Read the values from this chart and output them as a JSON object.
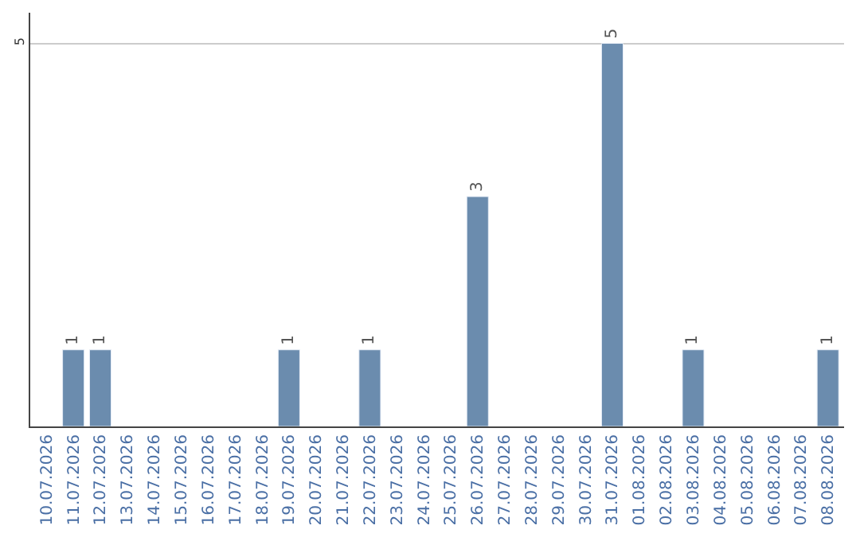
{
  "chart_data": {
    "type": "bar",
    "categories": [
      "10.07.2026",
      "11.07.2026",
      "12.07.2026",
      "13.07.2026",
      "14.07.2026",
      "15.07.2026",
      "16.07.2026",
      "17.07.2026",
      "18.07.2026",
      "19.07.2026",
      "20.07.2026",
      "21.07.2026",
      "22.07.2026",
      "23.07.2026",
      "24.07.2026",
      "25.07.2026",
      "26.07.2026",
      "27.07.2026",
      "28.07.2026",
      "29.07.2026",
      "30.07.2026",
      "31.07.2026",
      "01.08.2026",
      "02.08.2026",
      "03.08.2026",
      "04.08.2026",
      "05.08.2026",
      "06.08.2026",
      "07.08.2026",
      "08.08.2026"
    ],
    "values": [
      null,
      1,
      1,
      null,
      null,
      null,
      null,
      null,
      null,
      1,
      null,
      null,
      1,
      null,
      null,
      null,
      3,
      null,
      null,
      null,
      null,
      5,
      null,
      null,
      1,
      null,
      null,
      null,
      null,
      1
    ],
    "value_labels": [
      null,
      "1",
      "1",
      null,
      null,
      null,
      null,
      null,
      null,
      "1",
      null,
      null,
      "1",
      null,
      null,
      null,
      "3",
      null,
      null,
      null,
      null,
      "5",
      null,
      null,
      "1",
      null,
      null,
      null,
      null,
      "1"
    ],
    "color": "#6b8cae",
    "ylim": [
      0,
      5.4
    ],
    "yticks": [
      5
    ],
    "grid": "y",
    "legend": false
  }
}
